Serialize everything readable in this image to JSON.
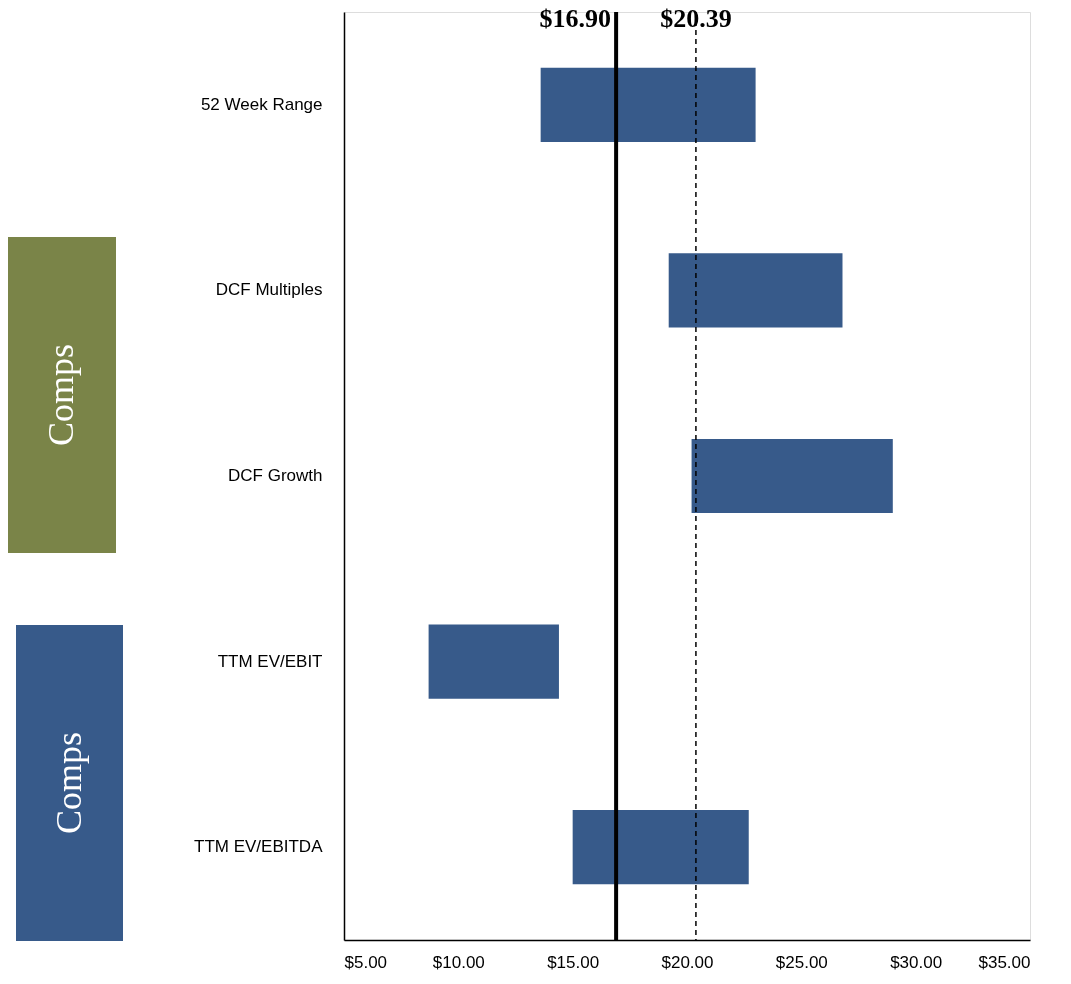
{
  "chart_data": {
    "type": "bar",
    "orientation": "horizontal",
    "categories": [
      "52 Week Range",
      "DCF Multiples",
      "DCF Growth",
      "TTM EV/EBIT",
      "TTM EV/EBITDA"
    ],
    "base": [
      13.6,
      19.2,
      20.2,
      8.7,
      15.0
    ],
    "values": [
      9.4,
      7.6,
      8.8,
      5.7,
      7.7
    ],
    "color": "#375a8a",
    "xlim": [
      5,
      35
    ],
    "xticks": [
      {
        "value": 5,
        "label": "$5.00"
      },
      {
        "value": 10,
        "label": "$10.00"
      },
      {
        "value": 15,
        "label": "$15.00"
      },
      {
        "value": 20,
        "label": "$20.00"
      },
      {
        "value": 25,
        "label": "$25.00"
      },
      {
        "value": 30,
        "label": "$30.00"
      },
      {
        "value": 35,
        "label": "$35.00"
      }
    ],
    "ref_lines": [
      {
        "axis": "x",
        "value": 16.9,
        "label": "$16.90",
        "color": "#000000",
        "line_style": "solid"
      },
      {
        "axis": "x",
        "value": 20.39,
        "label": "$20.39",
        "color": "#000000",
        "line_style": "dashed"
      }
    ],
    "annotations": [
      "Comps",
      "Comps"
    ],
    "grid": false
  }
}
